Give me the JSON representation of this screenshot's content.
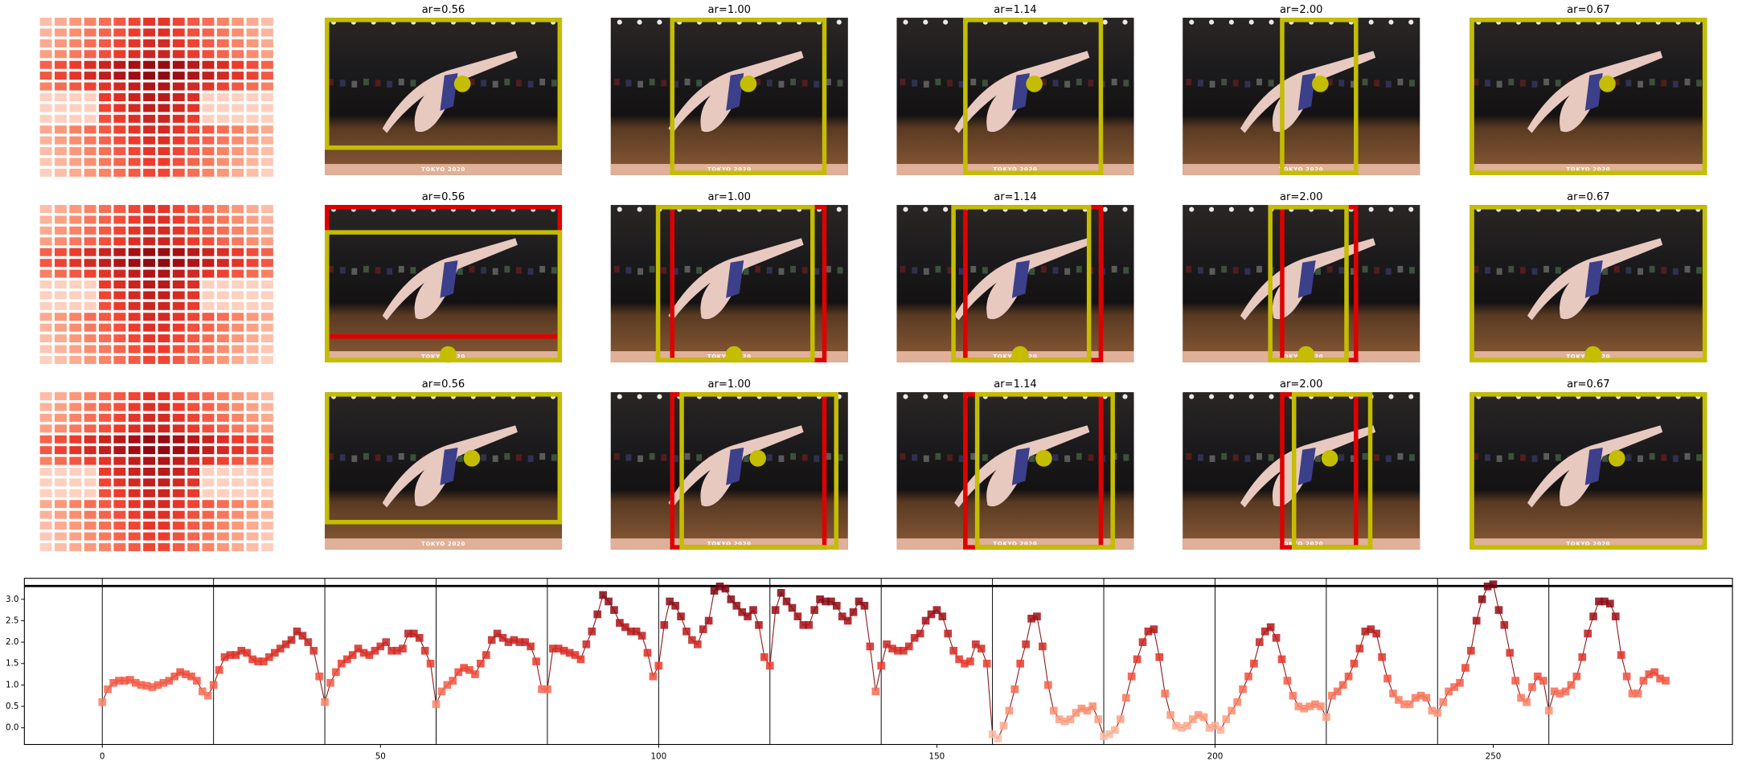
{
  "panels": {
    "photo_text": "TOKYO 2020",
    "rows": [
      {
        "titles": [
          "ar=0.56",
          "ar=1.00",
          "ar=1.14",
          "ar=2.00",
          "ar=0.67"
        ]
      },
      {
        "titles": [
          "ar=0.56",
          "ar=1.00",
          "ar=1.14",
          "ar=2.00",
          "ar=0.67"
        ]
      },
      {
        "titles": [
          "ar=0.56",
          "ar=1.00",
          "ar=1.14",
          "ar=2.00",
          "ar=0.67"
        ]
      }
    ]
  },
  "chart_data": {
    "type": "line",
    "colormap": "Reds",
    "line_color": "#8b1a1a",
    "xlim": [
      -14,
      293
    ],
    "ylim": [
      -0.39,
      3.49
    ],
    "xticks": [
      0,
      50,
      100,
      150,
      200,
      250
    ],
    "yticks": [
      {
        "value": 0,
        "label": "0.0"
      },
      {
        "value": 0.5,
        "label": "0.5"
      },
      {
        "value": 1,
        "label": "1.0"
      },
      {
        "value": 1.5,
        "label": "1.5"
      },
      {
        "value": 2,
        "label": "2.0"
      },
      {
        "value": 2.5,
        "label": "2.5"
      },
      {
        "value": 3,
        "label": "3.0"
      }
    ],
    "vlines": [
      0,
      20,
      40,
      60,
      80,
      100,
      120,
      140,
      160,
      180,
      200,
      220,
      240,
      260
    ],
    "hlines": [
      3.31
    ],
    "x": [
      0,
      1,
      2,
      3,
      4,
      5,
      6,
      7,
      8,
      9,
      10,
      11,
      12,
      13,
      14,
      15,
      16,
      17,
      18,
      19,
      20,
      21,
      22,
      23,
      24,
      25,
      26,
      27,
      28,
      29,
      30,
      31,
      32,
      33,
      34,
      35,
      36,
      37,
      38,
      39,
      40,
      41,
      42,
      43,
      44,
      45,
      46,
      47,
      48,
      49,
      50,
      51,
      52,
      53,
      54,
      55,
      56,
      57,
      58,
      59,
      60,
      61,
      62,
      63,
      64,
      65,
      66,
      67,
      68,
      69,
      70,
      71,
      72,
      73,
      74,
      75,
      76,
      77,
      78,
      79,
      80,
      81,
      82,
      83,
      84,
      85,
      86,
      87,
      88,
      89,
      90,
      91,
      92,
      93,
      94,
      95,
      96,
      97,
      98,
      99,
      100,
      101,
      102,
      103,
      104,
      105,
      106,
      107,
      108,
      109,
      110,
      111,
      112,
      113,
      114,
      115,
      116,
      117,
      118,
      119,
      120,
      121,
      122,
      123,
      124,
      125,
      126,
      127,
      128,
      129,
      130,
      131,
      132,
      133,
      134,
      135,
      136,
      137,
      138,
      139,
      140,
      141,
      142,
      143,
      144,
      145,
      146,
      147,
      148,
      149,
      150,
      151,
      152,
      153,
      154,
      155,
      156,
      157,
      158,
      159,
      160,
      161,
      162,
      163,
      164,
      165,
      166,
      167,
      168,
      169,
      170,
      171,
      172,
      173,
      174,
      175,
      176,
      177,
      178,
      179,
      180,
      181,
      182,
      183,
      184,
      185,
      186,
      187,
      188,
      189,
      190,
      191,
      192,
      193,
      194,
      195,
      196,
      197,
      198,
      199,
      200,
      201,
      202,
      203,
      204,
      205,
      206,
      207,
      208,
      209,
      210,
      211,
      212,
      213,
      214,
      215,
      216,
      217,
      218,
      219,
      220,
      221,
      222,
      223,
      224,
      225,
      226,
      227,
      228,
      229,
      230,
      231,
      232,
      233,
      234,
      235,
      236,
      237,
      238,
      239,
      240,
      241,
      242,
      243,
      244,
      245,
      246,
      247,
      248,
      249,
      250,
      251,
      252,
      253,
      254,
      255,
      256,
      257,
      258,
      259,
      260,
      261,
      262,
      263,
      264,
      265,
      266,
      267,
      268,
      269,
      270,
      271,
      272,
      273,
      274,
      275,
      276,
      277,
      278,
      279,
      280,
      281
    ],
    "values": [
      0.6,
      0.9,
      1.05,
      1.1,
      1.1,
      1.12,
      1.05,
      1.0,
      0.98,
      0.95,
      1.0,
      1.05,
      1.1,
      1.2,
      1.3,
      1.25,
      1.2,
      1.1,
      0.85,
      0.75,
      1.0,
      1.35,
      1.65,
      1.7,
      1.7,
      1.8,
      1.75,
      1.6,
      1.55,
      1.55,
      1.65,
      1.75,
      1.85,
      1.95,
      2.05,
      2.25,
      2.15,
      2.0,
      1.8,
      1.2,
      0.6,
      1.05,
      1.3,
      1.5,
      1.6,
      1.7,
      1.85,
      1.75,
      1.7,
      1.8,
      1.9,
      2.0,
      1.8,
      1.8,
      1.85,
      2.2,
      2.2,
      2.1,
      1.8,
      1.5,
      0.55,
      0.85,
      1.0,
      1.1,
      1.3,
      1.4,
      1.35,
      1.25,
      1.5,
      1.7,
      2.05,
      2.2,
      2.1,
      2.0,
      2.05,
      2.0,
      2.0,
      1.9,
      1.55,
      0.9,
      0.9,
      1.85,
      1.85,
      1.8,
      1.75,
      1.7,
      1.6,
      1.95,
      2.25,
      2.65,
      3.1,
      2.95,
      2.75,
      2.45,
      2.35,
      2.25,
      2.25,
      2.15,
      1.75,
      1.2,
      1.45,
      2.4,
      2.95,
      2.85,
      2.6,
      2.25,
      2.05,
      1.95,
      2.3,
      2.5,
      3.2,
      3.3,
      3.25,
      3.0,
      2.85,
      2.7,
      2.6,
      2.75,
      2.4,
      1.65,
      1.45,
      2.75,
      3.15,
      2.95,
      2.8,
      2.6,
      2.4,
      2.4,
      2.75,
      3.0,
      2.95,
      2.95,
      2.85,
      2.6,
      2.5,
      2.7,
      2.95,
      2.85,
      1.9,
      0.85,
      1.45,
      1.95,
      1.85,
      1.8,
      1.8,
      1.9,
      2.1,
      2.2,
      2.5,
      2.65,
      2.75,
      2.6,
      2.2,
      1.8,
      1.6,
      1.5,
      1.55,
      1.95,
      1.85,
      1.5,
      -0.15,
      -0.25,
      0.05,
      0.4,
      0.9,
      1.5,
      1.95,
      2.55,
      2.6,
      1.9,
      1.0,
      0.4,
      0.2,
      0.15,
      0.2,
      0.35,
      0.45,
      0.4,
      0.5,
      0.2,
      -0.2,
      -0.15,
      -0.05,
      0.2,
      0.7,
      1.2,
      1.6,
      2.0,
      2.25,
      2.3,
      1.65,
      0.8,
      0.3,
      0.05,
      0.0,
      0.05,
      0.2,
      0.3,
      0.25,
      0.0,
      0.05,
      -0.05,
      0.2,
      0.4,
      0.6,
      0.9,
      1.2,
      1.5,
      2.0,
      2.25,
      2.35,
      2.1,
      1.6,
      1.1,
      0.75,
      0.5,
      0.45,
      0.5,
      0.55,
      0.5,
      0.25,
      0.75,
      0.85,
      1.0,
      1.2,
      1.5,
      1.85,
      2.25,
      2.3,
      2.2,
      1.65,
      1.15,
      0.8,
      0.65,
      0.55,
      0.55,
      0.7,
      0.75,
      0.7,
      0.4,
      0.35,
      0.6,
      0.85,
      0.95,
      1.05,
      1.4,
      1.8,
      2.5,
      3.0,
      3.3,
      3.35,
      2.75,
      2.4,
      1.75,
      1.1,
      0.7,
      0.6,
      0.95,
      1.2,
      1.1,
      0.4,
      0.85,
      0.8,
      0.85,
      1.0,
      1.2,
      1.65,
      2.2,
      2.6,
      2.95,
      2.95,
      2.9,
      2.6,
      1.7,
      1.2,
      0.8,
      0.8,
      1.1,
      1.25,
      1.3,
      1.15,
      1.1
    ]
  }
}
